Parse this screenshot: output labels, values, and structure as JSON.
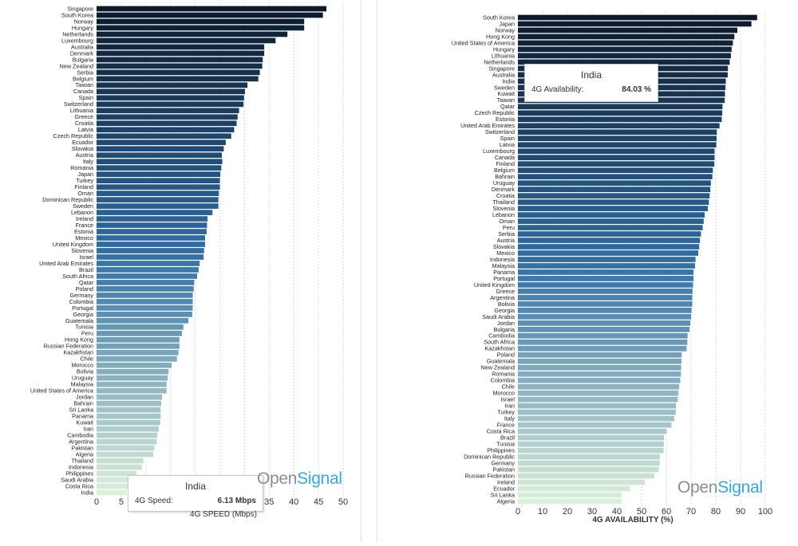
{
  "colors": {
    "dark": "#0c1a2b",
    "mid": "#2f6da7",
    "light": "#dcefd9",
    "grid": "#d8d8d8",
    "brand_grey": "#8a8f93",
    "brand_blue": "#3aa7d8"
  },
  "brand": {
    "part1": "Open",
    "part2": "Signal"
  },
  "chart_data": [
    {
      "type": "bar",
      "orientation": "horizontal",
      "xlabel": "4G SPEED (Mbps)",
      "xlim": [
        0,
        50
      ],
      "xticks": [
        "0",
        "5",
        "10",
        "15",
        "20",
        "25",
        "30",
        "35",
        "40",
        "45",
        "50"
      ],
      "grid": true,
      "categories": [
        "Singapore",
        "South Korea",
        "Norway",
        "Hungary",
        "Netherlands",
        "Luxembourg",
        "Australia",
        "Denmark",
        "Bulgaria",
        "New Zealand",
        "Serbia",
        "Belgium",
        "Taiwan",
        "Canada",
        "Spain",
        "Switzerland",
        "Lithuania",
        "Greece",
        "Croatia",
        "Latvia",
        "Czech Republic",
        "Ecuador",
        "Slovakia",
        "Austria",
        "Italy",
        "Romania",
        "Japan",
        "Turkey",
        "Finland",
        "Oman",
        "Dominican Republic",
        "Sweden",
        "Lebanon",
        "Ireland",
        "France",
        "Estonia",
        "Mexico",
        "United Kingdom",
        "Slovenia",
        "Israel",
        "United Arab Emirates",
        "Brazil",
        "South Africa",
        "Qatar",
        "Poland",
        "Germany",
        "Colombia",
        "Portugal",
        "Georgia",
        "Guatemala",
        "Tunisia",
        "Peru",
        "Hong Kong",
        "Russian Federation",
        "Kazakhstan",
        "Chile",
        "Morocco",
        "Bolivia",
        "Uruguay",
        "Malaysia",
        "United States of America",
        "Jordan",
        "Bahrain",
        "Sri Lanka",
        "Panama",
        "Kuwait",
        "Iran",
        "Cambodia",
        "Argentina",
        "Pakistan",
        "Algeria",
        "Thailand",
        "Indonesia",
        "Philippines",
        "Saudi Arabia",
        "Costa Rica",
        "India"
      ],
      "values": [
        46.6,
        45.9,
        42.1,
        42.1,
        38.7,
        36.3,
        34.0,
        34.0,
        33.7,
        33.6,
        33.1,
        32.8,
        30.6,
        30.1,
        29.9,
        29.8,
        28.9,
        28.6,
        28.4,
        27.9,
        27.3,
        26.2,
        25.8,
        25.4,
        25.5,
        25.3,
        25.1,
        25.0,
        25.0,
        24.8,
        24.7,
        24.7,
        23.5,
        22.5,
        22.4,
        22.3,
        22.0,
        22.0,
        21.8,
        21.7,
        20.9,
        20.7,
        20.4,
        19.8,
        19.7,
        19.5,
        19.5,
        19.5,
        19.4,
        18.6,
        17.6,
        17.3,
        16.8,
        16.8,
        16.6,
        16.3,
        15.2,
        14.6,
        14.4,
        14.2,
        14.2,
        13.3,
        13.1,
        13.0,
        13.0,
        12.9,
        12.6,
        12.3,
        12.2,
        11.7,
        11.5,
        9.5,
        9.2,
        8.1,
        7.3,
        7.2,
        6.13
      ],
      "tooltip": {
        "country": "India",
        "metric": "4G Speed:",
        "value": "6.13 Mbps"
      }
    },
    {
      "type": "bar",
      "orientation": "horizontal",
      "xlabel": "4G AVAILABILITY (%)",
      "xlim": [
        0,
        100
      ],
      "xticks": [
        "0",
        "10",
        "20",
        "30",
        "40",
        "50",
        "60",
        "70",
        "80",
        "90",
        "100"
      ],
      "grid": true,
      "categories": [
        "South Korea",
        "Japan",
        "Norway",
        "Hong Kong",
        "United States of America",
        "Hungary",
        "Lithuania",
        "Netherlands",
        "Singapore",
        "Australia",
        "India",
        "Sweden",
        "Kuwait",
        "Taiwan",
        "Qatar",
        "Czech Republic",
        "Estonia",
        "United Arab Emirates",
        "Switzerland",
        "Spain",
        "Latvia",
        "Luxembourg",
        "Canada",
        "Finland",
        "Belgium",
        "Bahrain",
        "Uruguay",
        "Denmark",
        "Croatia",
        "Thailand",
        "Slovenia",
        "Lebanon",
        "Oman",
        "Peru",
        "Serbia",
        "Austria",
        "Slovakia",
        "Mexico",
        "Indonesia",
        "Malaysia",
        "Panama",
        "Portugal",
        "United Kingdom",
        "Greece",
        "Argentina",
        "Bolivia",
        "Georgia",
        "Saudi Arabia",
        "Jordan",
        "Bulgaria",
        "Cambodia",
        "South Africa",
        "Kazakhstan",
        "Poland",
        "Guatemala",
        "New Zealand",
        "Romania",
        "Colombia",
        "Chile",
        "Morocco",
        "Israel",
        "Iran",
        "Turkey",
        "Italy",
        "France",
        "Costa Rica",
        "Brazil",
        "Tunisia",
        "Philippines",
        "Dominican Republic",
        "Germany",
        "Pakistan",
        "Russian Federation",
        "Ireland",
        "Ecuador",
        "Sri Lanka",
        "Algeria"
      ],
      "values": [
        96.7,
        94.4,
        88.7,
        87.5,
        86.9,
        86.4,
        86.1,
        85.6,
        84.9,
        84.8,
        84.03,
        83.9,
        83.7,
        83.6,
        82.7,
        82.6,
        82.4,
        81.5,
        80.4,
        80.3,
        80.2,
        79.5,
        79.5,
        79.4,
        78.8,
        78.6,
        78.0,
        77.8,
        77.5,
        77.2,
        76.8,
        75.5,
        75.1,
        74.7,
        74.0,
        73.6,
        73.3,
        72.9,
        71.8,
        71.6,
        71.0,
        71.0,
        70.8,
        70.6,
        70.5,
        70.5,
        70.2,
        70.0,
        69.7,
        69.4,
        68.6,
        68.5,
        68.2,
        66.2,
        66.1,
        66.0,
        65.9,
        65.6,
        65.2,
        64.9,
        64.6,
        63.9,
        63.8,
        63.2,
        62.1,
        60.2,
        59.1,
        59.0,
        58.9,
        57.4,
        57.3,
        56.9,
        55.2,
        51.4,
        45.4,
        42.0,
        41.9
      ],
      "tooltip": {
        "country": "India",
        "metric": "4G Availability:",
        "value": "84.03 %"
      }
    }
  ]
}
